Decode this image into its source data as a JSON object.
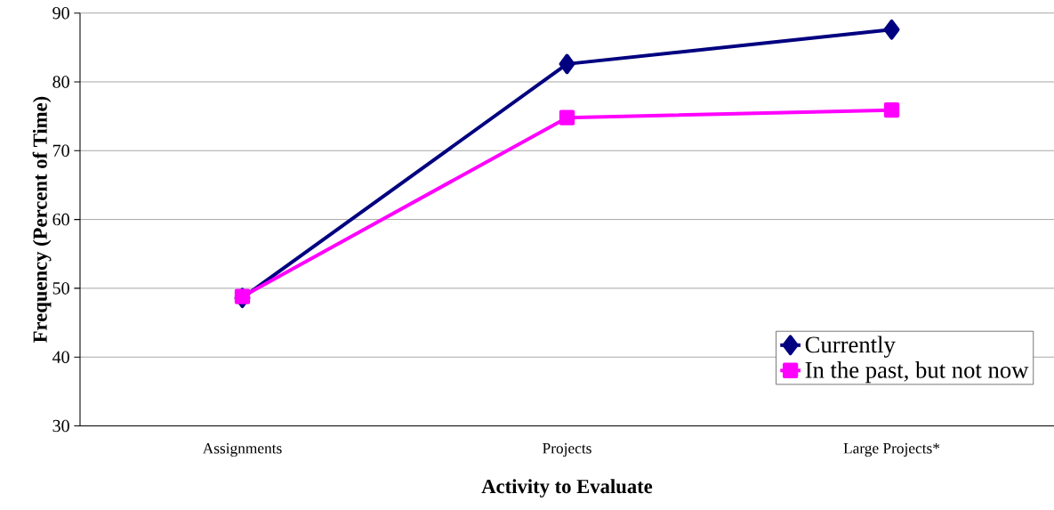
{
  "chart_data": {
    "type": "line",
    "xlabel": "Activity to Evaluate",
    "ylabel": "Frequency (Percent of Time)",
    "categories": [
      "Assignments",
      "Projects",
      "Large Projects*"
    ],
    "series": [
      {
        "name": "Currently",
        "color": "#000080",
        "values": [
          48.6,
          82.6,
          87.6
        ],
        "marker": "diamond"
      },
      {
        "name": "In the past, but not now",
        "color": "#ff00ff",
        "values": [
          48.8,
          74.8,
          75.9
        ],
        "marker": "square"
      }
    ],
    "ylim": [
      30,
      90
    ],
    "yticks": [
      30,
      40,
      50,
      60,
      70,
      80,
      90
    ],
    "grid": "y",
    "legend": "bottom right",
    "line_style": "solid"
  }
}
